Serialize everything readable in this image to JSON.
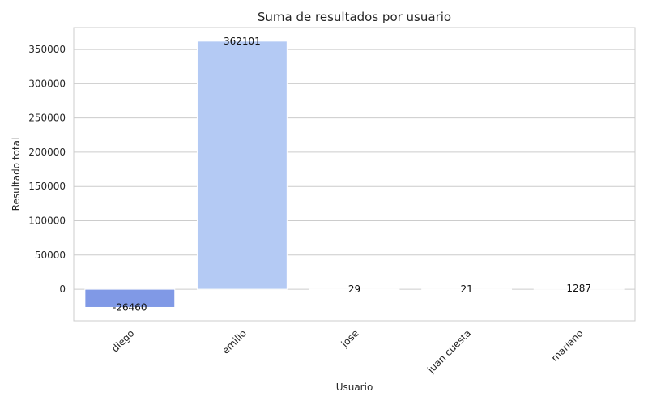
{
  "chart_data": {
    "type": "bar",
    "title": "Suma de resultados por usuario",
    "xlabel": "Usuario",
    "ylabel": "Resultado total",
    "categories": [
      "diego",
      "emilio",
      "jose",
      "juan cuesta",
      "mariano"
    ],
    "values": [
      -26460,
      362101,
      29,
      21,
      1287
    ],
    "data_labels": [
      "-26460",
      "362101",
      "29",
      "21",
      "1287"
    ],
    "colors": [
      "#8099e6",
      "#b4caf4",
      "#f7f7f7",
      "#f3f3f3",
      "#f0f0f0"
    ],
    "ylim": [
      -46000,
      382000
    ],
    "yticks": [
      0,
      50000,
      100000,
      150000,
      200000,
      250000,
      300000,
      350000
    ],
    "grid": true,
    "x_tick_rotation": -45
  }
}
